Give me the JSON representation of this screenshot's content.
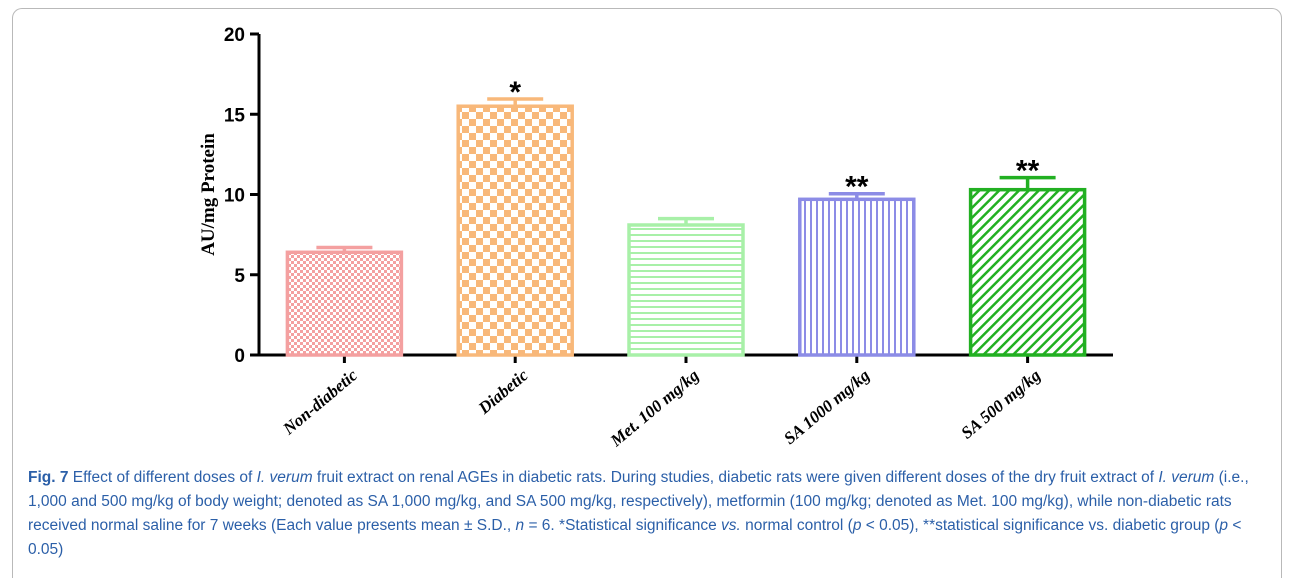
{
  "chart_data": {
    "type": "bar",
    "ylabel": "AU/mg Protein",
    "ylim": [
      0,
      20
    ],
    "yticks": [
      "0",
      "5",
      "10",
      "15",
      "20"
    ],
    "categories": [
      "Non-diabetic",
      "Diabetic",
      "Met. 100 mg/kg",
      "SA 1000 mg/kg",
      "SA 500 mg/kg"
    ],
    "values": [
      6.4,
      15.5,
      8.1,
      9.7,
      10.3
    ],
    "errors": [
      0.3,
      0.45,
      0.4,
      0.35,
      0.75
    ],
    "annotations": [
      "",
      "*",
      "",
      "**",
      "**"
    ],
    "colors": [
      "#f4a0a0",
      "#f8b87a",
      "#a8f0a8",
      "#8c8ce6",
      "#22b022"
    ],
    "patterns": [
      "checker-fine",
      "checker",
      "horizontal-lines",
      "vertical-lines",
      "diagonal-lines"
    ],
    "grid": false
  },
  "caption": {
    "fig_label": "Fig. 7",
    "text_1": " Effect of different doses of ",
    "species_1": "I. verum",
    "text_2": " fruit extract on renal AGEs in diabetic rats. During studies, diabetic rats were given different doses of the dry fruit extract of ",
    "species_2": "I. verum",
    "text_3": " (i.e., 1,000 and 500 mg/kg of body weight; denoted as SA 1,000 mg/kg, and SA 500 mg/kg, respectively), metformin (100 mg/kg; denoted as Met. 100 mg/kg), while non-diabetic rats received normal saline for 7 weeks (Each value presents mean ± S.D., ",
    "n_var": "n",
    "text_4": " = 6. *Statistical significance ",
    "vs_italic": "vs.",
    "text_5": " normal control (",
    "p_var_1": "p",
    "text_6": " < 0.05), **statistical significance vs. diabetic group (",
    "p_var_2": "p",
    "text_7": " < 0.05)"
  }
}
